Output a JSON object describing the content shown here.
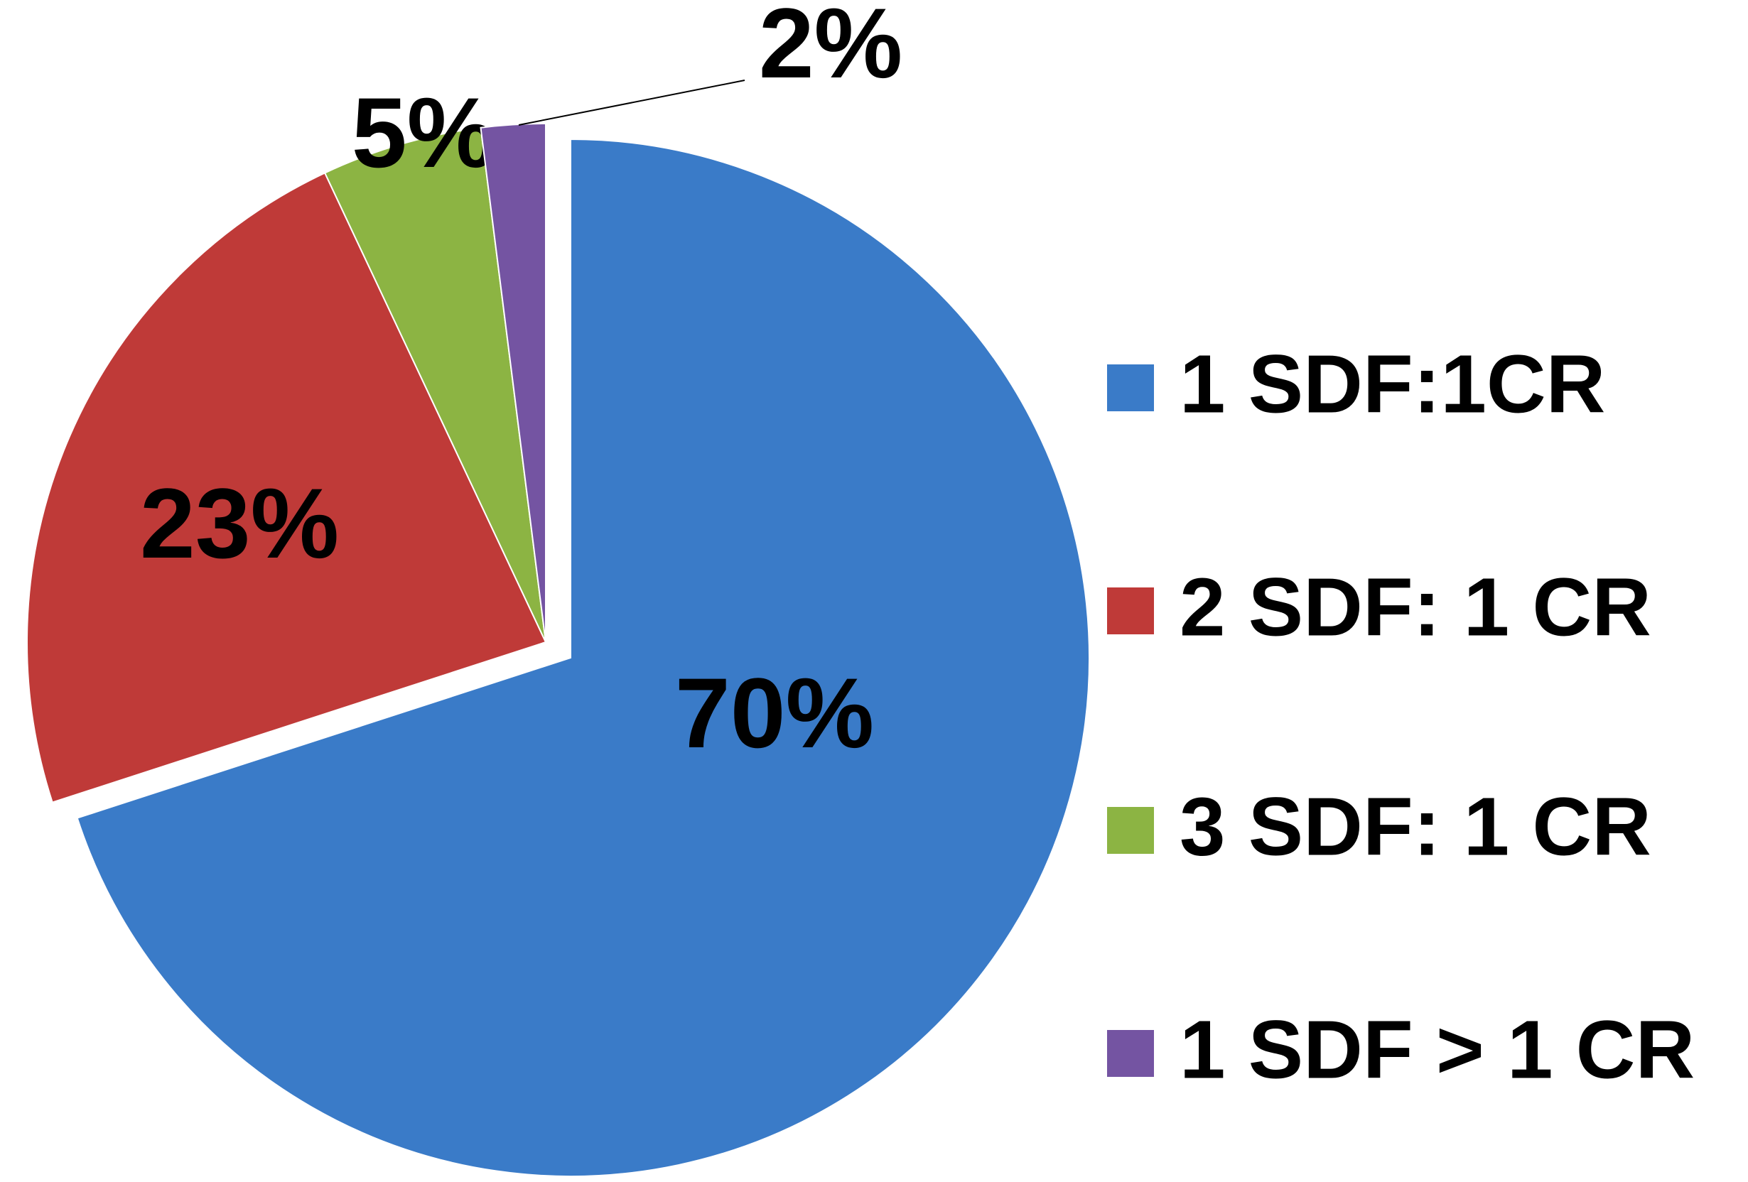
{
  "chart_data": {
    "type": "pie",
    "categories": [
      "1 SDF:1CR",
      "2 SDF: 1 CR",
      "3 SDF: 1 CR",
      "1 SDF > 1 CR"
    ],
    "values": [
      70,
      23,
      5,
      2
    ],
    "value_labels": [
      "70%",
      "23%",
      "5%",
      "2%"
    ],
    "colors": [
      "#3a7bc8",
      "#bf3a38",
      "#8cb443",
      "#7454a2"
    ],
    "legend": "right"
  }
}
